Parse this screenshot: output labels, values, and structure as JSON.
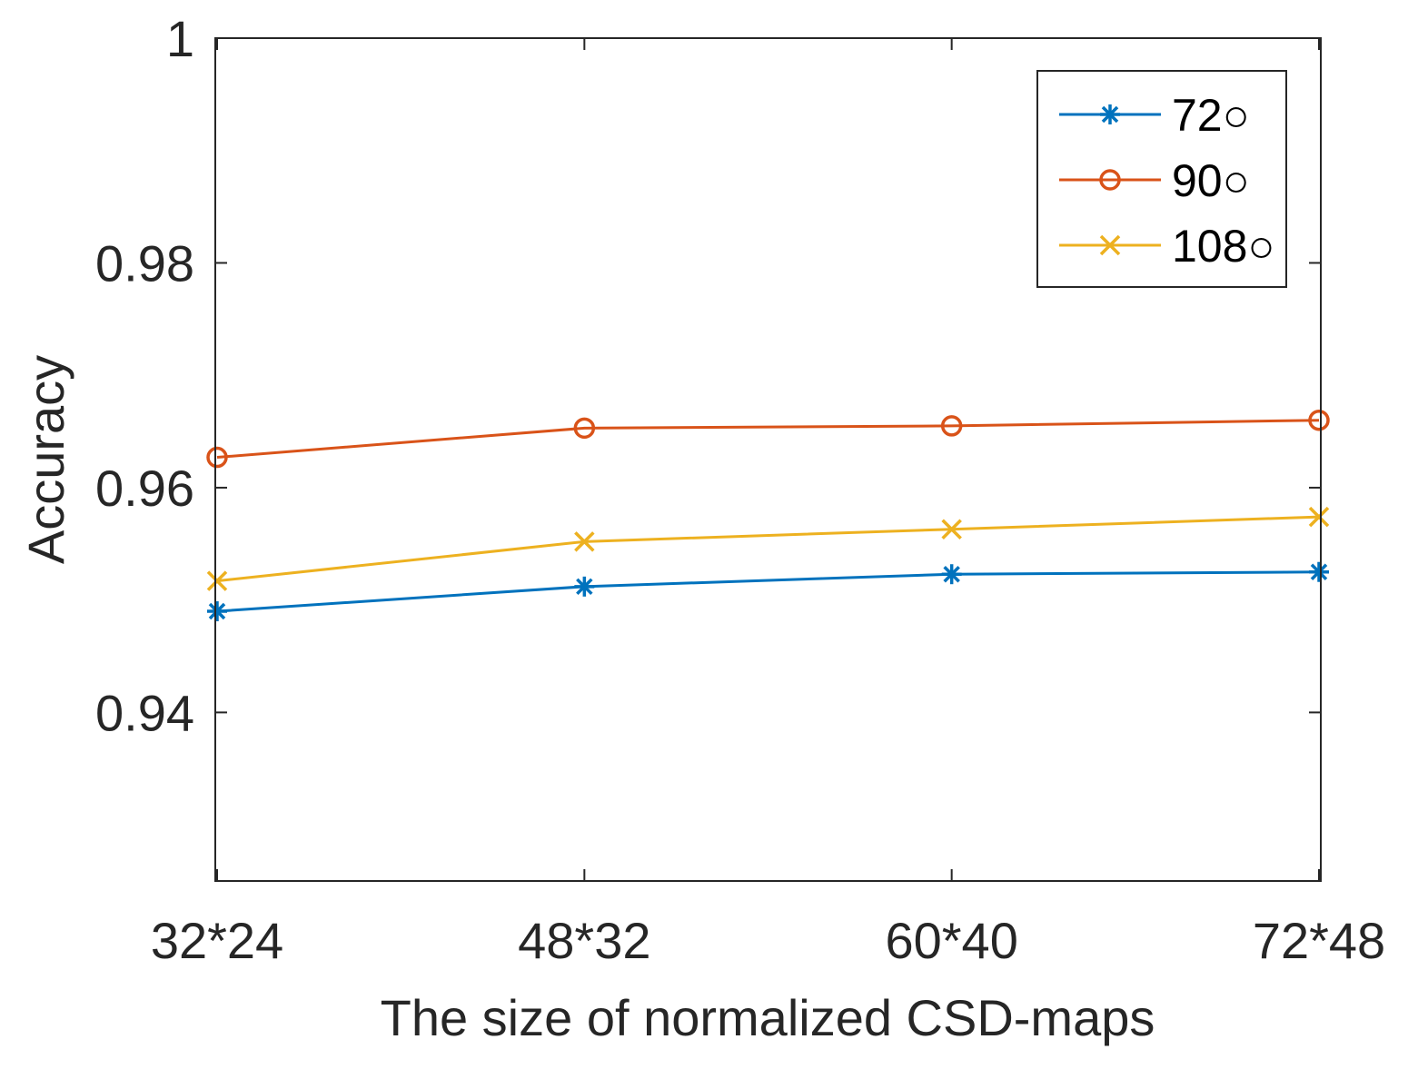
{
  "chart_data": {
    "type": "line",
    "title": "",
    "xlabel": "The size of normalized CSD-maps",
    "ylabel": "Accuracy",
    "categories": [
      "32*24",
      "48*32",
      "60*40",
      "72*48"
    ],
    "ylim": [
      0.925,
      1.0
    ],
    "yticks": [
      0.94,
      0.96,
      0.98,
      1.0
    ],
    "ytick_labels": [
      "0.94",
      "0.96",
      "0.98",
      "1"
    ],
    "grid": false,
    "legend_position": "top-right",
    "series": [
      {
        "name": "72°",
        "legend_label": "72○",
        "marker": "asterisk",
        "color": "#0072BD",
        "values": [
          0.949,
          0.9512,
          0.9523,
          0.9525
        ]
      },
      {
        "name": "90°",
        "legend_label": "90○",
        "marker": "circle",
        "color": "#D95319",
        "values": [
          0.9627,
          0.9653,
          0.9655,
          0.966
        ]
      },
      {
        "name": "108°",
        "legend_label": "108○",
        "marker": "x",
        "color": "#EDB120",
        "values": [
          0.9517,
          0.9552,
          0.9563,
          0.9574
        ]
      }
    ]
  }
}
